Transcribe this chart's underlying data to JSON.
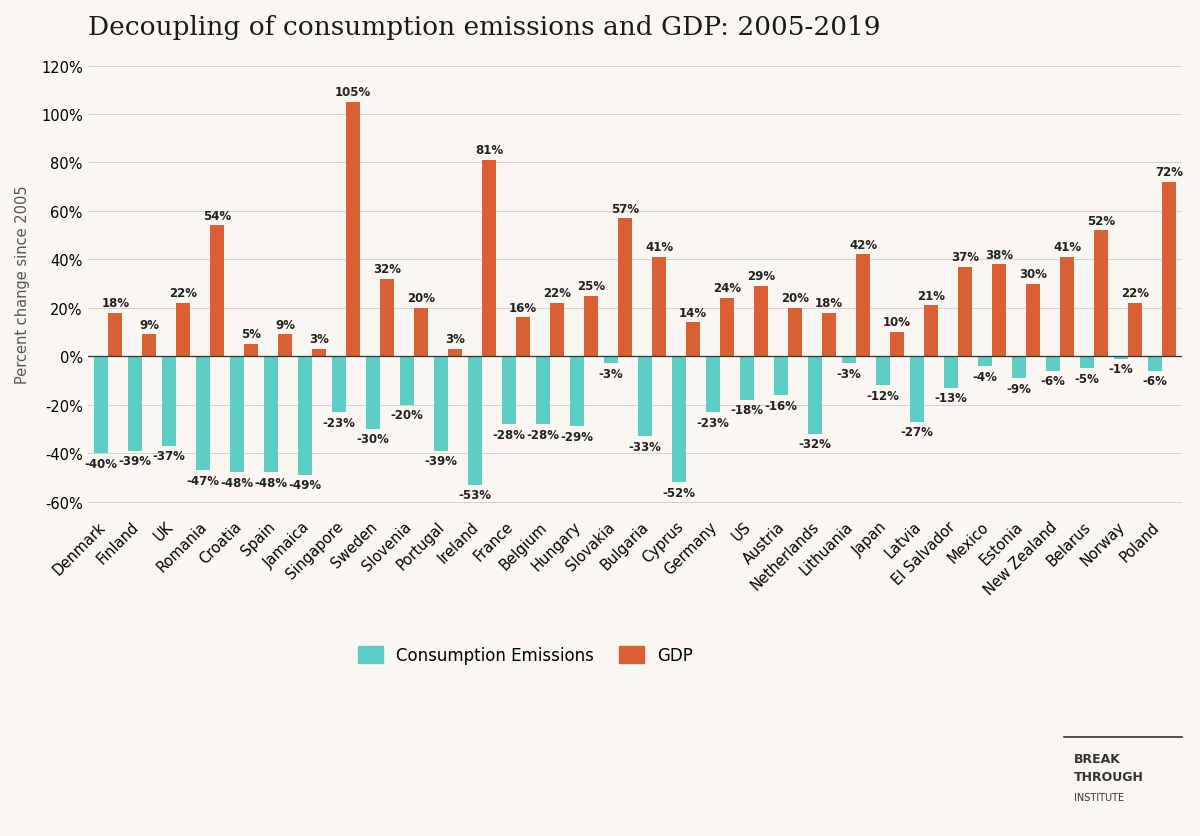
{
  "title": "Decoupling of consumption emissions and GDP: 2005-2019",
  "ylabel": "Percent change since 2005",
  "countries": [
    "Denmark",
    "Finland",
    "UK",
    "Romania",
    "Croatia",
    "Spain",
    "Jamaica",
    "Singapore",
    "Sweden",
    "Slovenia",
    "Portugal",
    "Ireland",
    "France",
    "Belgium",
    "Hungary",
    "Slovakia",
    "Bulgaria",
    "Cyprus",
    "Germany",
    "US",
    "Austria",
    "Netherlands",
    "Lithuania",
    "Japan",
    "Latvia",
    "El Salvador",
    "Mexico",
    "Estonia",
    "New Zealand",
    "Belarus",
    "Norway",
    "Poland"
  ],
  "consumption_emissions": [
    -40,
    -39,
    -37,
    -47,
    -48,
    -48,
    -49,
    -23,
    -30,
    -20,
    -39,
    -53,
    -28,
    -28,
    -29,
    -3,
    -33,
    -52,
    -23,
    -18,
    -16,
    -32,
    -3,
    -12,
    -27,
    -13,
    -4,
    -9,
    -6,
    -5,
    -1,
    -6
  ],
  "gdp": [
    18,
    9,
    22,
    54,
    5,
    9,
    3,
    105,
    32,
    20,
    3,
    81,
    16,
    22,
    25,
    57,
    41,
    14,
    24,
    29,
    20,
    18,
    42,
    10,
    21,
    37,
    38,
    30,
    41,
    52,
    22,
    72
  ],
  "bar_color_emissions": "#5ecec4",
  "bar_color_gdp": "#d95f34",
  "ylim_min": -65,
  "ylim_max": 125,
  "yticks": [
    -60,
    -40,
    -20,
    0,
    20,
    40,
    60,
    80,
    100,
    120
  ],
  "ytick_labels": [
    "-60%",
    "-40%",
    "-20%",
    "0%",
    "20%",
    "40%",
    "60%",
    "80%",
    "100%",
    "120%"
  ],
  "background_color": "#faf7f2",
  "legend_emissions": "Consumption Emissions",
  "legend_gdp": "GDP",
  "title_fontsize": 19,
  "label_fontsize": 8.5,
  "axis_fontsize": 10.5
}
